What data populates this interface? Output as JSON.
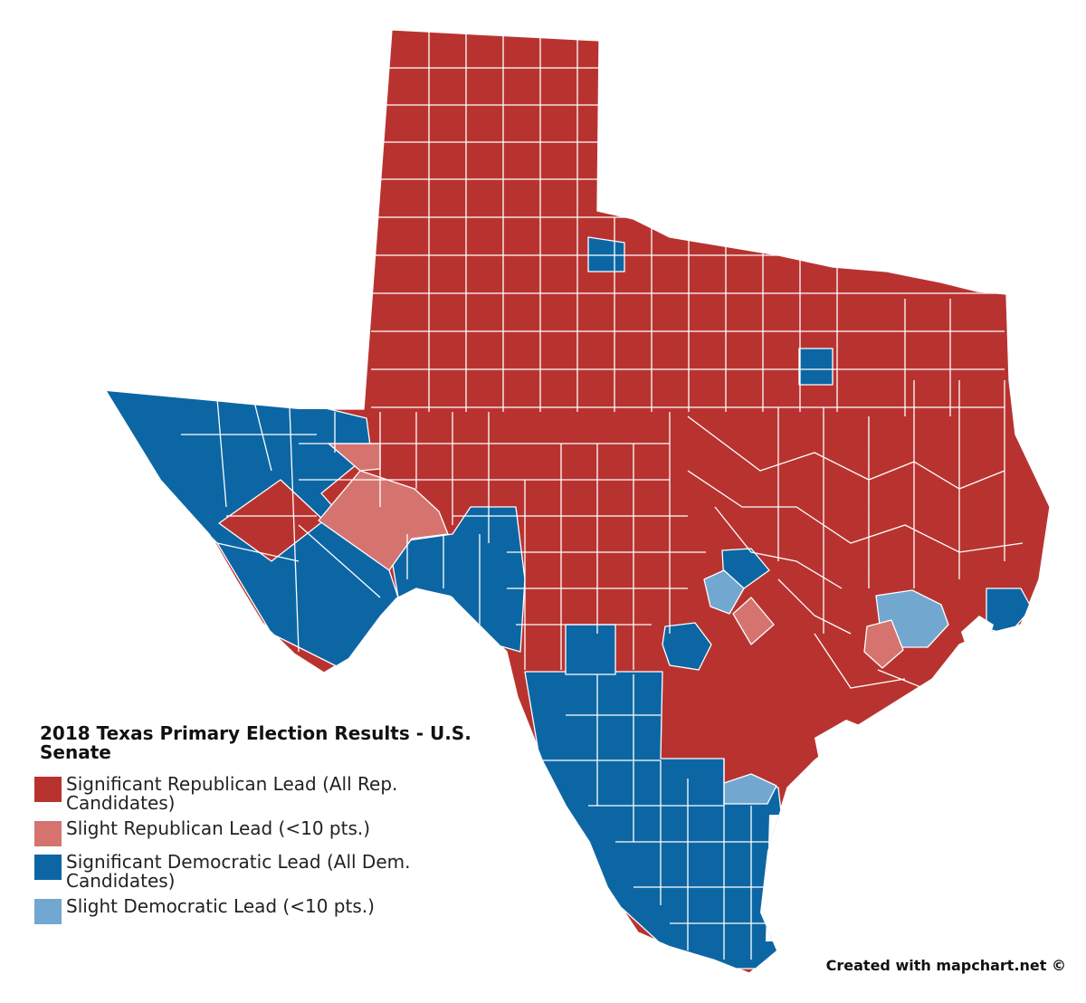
{
  "colors": {
    "sig_rep": "#b83330",
    "slight_rep": "#d5746f",
    "sig_dem": "#0d66a4",
    "slight_dem": "#72a7d0",
    "border": "#ffffff",
    "background": "#ffffff"
  },
  "legend": {
    "title": "2018 Texas Primary Election Results - U.S. Senate",
    "items": [
      {
        "label": "Significant Republican Lead (All Rep. Candidates)",
        "color": "#b83330"
      },
      {
        "label": "Slight Republican Lead (<10 pts.)",
        "color": "#d5746f"
      },
      {
        "label": "Significant Democratic Lead (All Dem. Candidates)",
        "color": "#0d66a4"
      },
      {
        "label": "Slight Democratic Lead (<10 pts.)",
        "color": "#72a7d0"
      }
    ]
  },
  "credit": "Created with mapchart.net ©"
}
